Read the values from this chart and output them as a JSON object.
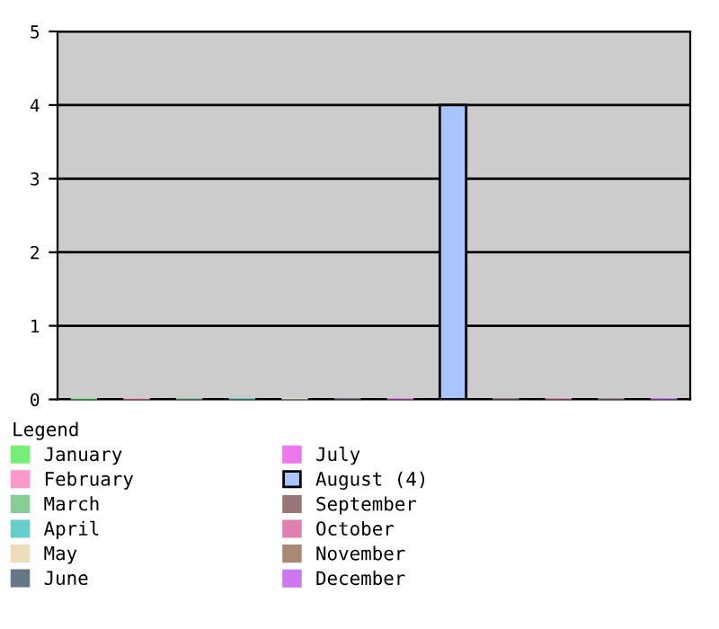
{
  "chart_data": {
    "type": "bar",
    "categories": [
      null,
      null,
      null,
      null,
      null,
      null,
      null,
      null,
      null,
      null,
      null,
      null
    ],
    "series": [
      {
        "name": "January",
        "color": "#77ee77",
        "values": [
          0,
          null,
          null,
          null,
          null,
          null,
          null,
          null,
          null,
          null,
          null,
          null
        ]
      },
      {
        "name": "February",
        "color": "#ff99cc",
        "values": [
          null,
          0,
          null,
          null,
          null,
          null,
          null,
          null,
          null,
          null,
          null,
          null
        ]
      },
      {
        "name": "March",
        "color": "#88cc99",
        "values": [
          null,
          null,
          0,
          null,
          null,
          null,
          null,
          null,
          null,
          null,
          null,
          null
        ]
      },
      {
        "name": "April",
        "color": "#66cccc",
        "values": [
          null,
          null,
          null,
          0,
          null,
          null,
          null,
          null,
          null,
          null,
          null,
          null
        ]
      },
      {
        "name": "May",
        "color": "#eeddbb",
        "values": [
          null,
          null,
          null,
          null,
          0,
          null,
          null,
          null,
          null,
          null,
          null,
          null
        ]
      },
      {
        "name": "June",
        "color": "#667788",
        "values": [
          null,
          null,
          null,
          null,
          null,
          0,
          null,
          null,
          null,
          null,
          null,
          null
        ]
      },
      {
        "name": "July",
        "color": "#ee77ee",
        "values": [
          null,
          null,
          null,
          null,
          null,
          null,
          0,
          null,
          null,
          null,
          null,
          null
        ]
      },
      {
        "name": "August (4)",
        "color": "#aac4ff",
        "values": [
          null,
          null,
          null,
          null,
          null,
          null,
          null,
          4,
          null,
          null,
          null,
          null
        ]
      },
      {
        "name": "September",
        "color": "#997777",
        "values": [
          null,
          null,
          null,
          null,
          null,
          null,
          null,
          null,
          0,
          null,
          null,
          null
        ]
      },
      {
        "name": "October",
        "color": "#e080b0",
        "values": [
          null,
          null,
          null,
          null,
          null,
          null,
          null,
          null,
          null,
          0,
          null,
          null
        ]
      },
      {
        "name": "November",
        "color": "#aa8877",
        "values": [
          null,
          null,
          null,
          null,
          null,
          null,
          null,
          null,
          null,
          null,
          0,
          null
        ]
      },
      {
        "name": "December",
        "color": "#cc77ee",
        "values": [
          null,
          null,
          null,
          null,
          null,
          null,
          null,
          null,
          null,
          null,
          null,
          0
        ]
      }
    ],
    "ylim": [
      0,
      5
    ],
    "yticks": [
      0,
      1,
      2,
      3,
      4,
      5
    ],
    "grid": "y",
    "legend": "bottom",
    "legend_title": "Legend",
    "tick_labels": "y"
  }
}
